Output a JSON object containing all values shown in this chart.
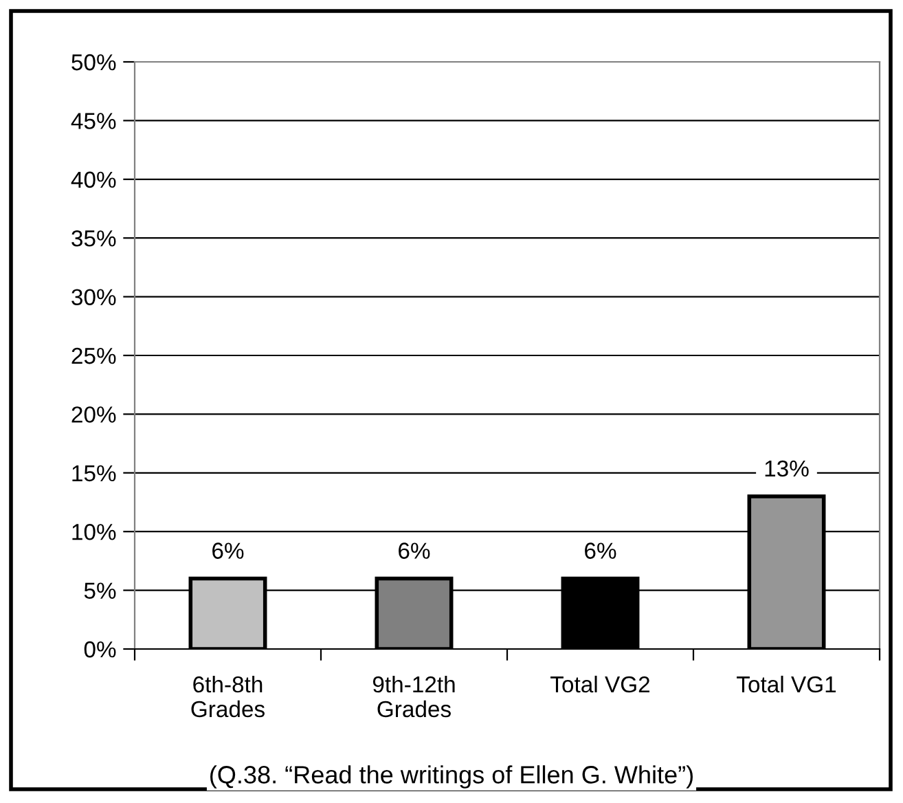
{
  "chart_data": {
    "type": "bar",
    "categories": [
      "6th-8th\nGrades",
      "9th-12th\nGrades",
      "Total VG2",
      "Total VG1"
    ],
    "values": [
      6,
      6,
      6,
      13
    ],
    "colors": [
      "#c0c0c0",
      "#808080",
      "#000000",
      "#969696"
    ],
    "value_labels": [
      "6%",
      "6%",
      "6%",
      "13%"
    ],
    "ylim": [
      0,
      50
    ],
    "yticks": [
      {
        "value": 0,
        "label": "0%"
      },
      {
        "value": 5,
        "label": "5%"
      },
      {
        "value": 10,
        "label": "10%"
      },
      {
        "value": 15,
        "label": "15%"
      },
      {
        "value": 20,
        "label": "20%"
      },
      {
        "value": 25,
        "label": "25%"
      },
      {
        "value": 30,
        "label": "30%"
      },
      {
        "value": 35,
        "label": "35%"
      },
      {
        "value": 40,
        "label": "40%"
      },
      {
        "value": 45,
        "label": "45%"
      },
      {
        "value": 50,
        "label": "50%"
      }
    ],
    "grid": "y",
    "annotations": [
      "(Q.38. “Read the writings of Ellen G. White”)"
    ]
  }
}
